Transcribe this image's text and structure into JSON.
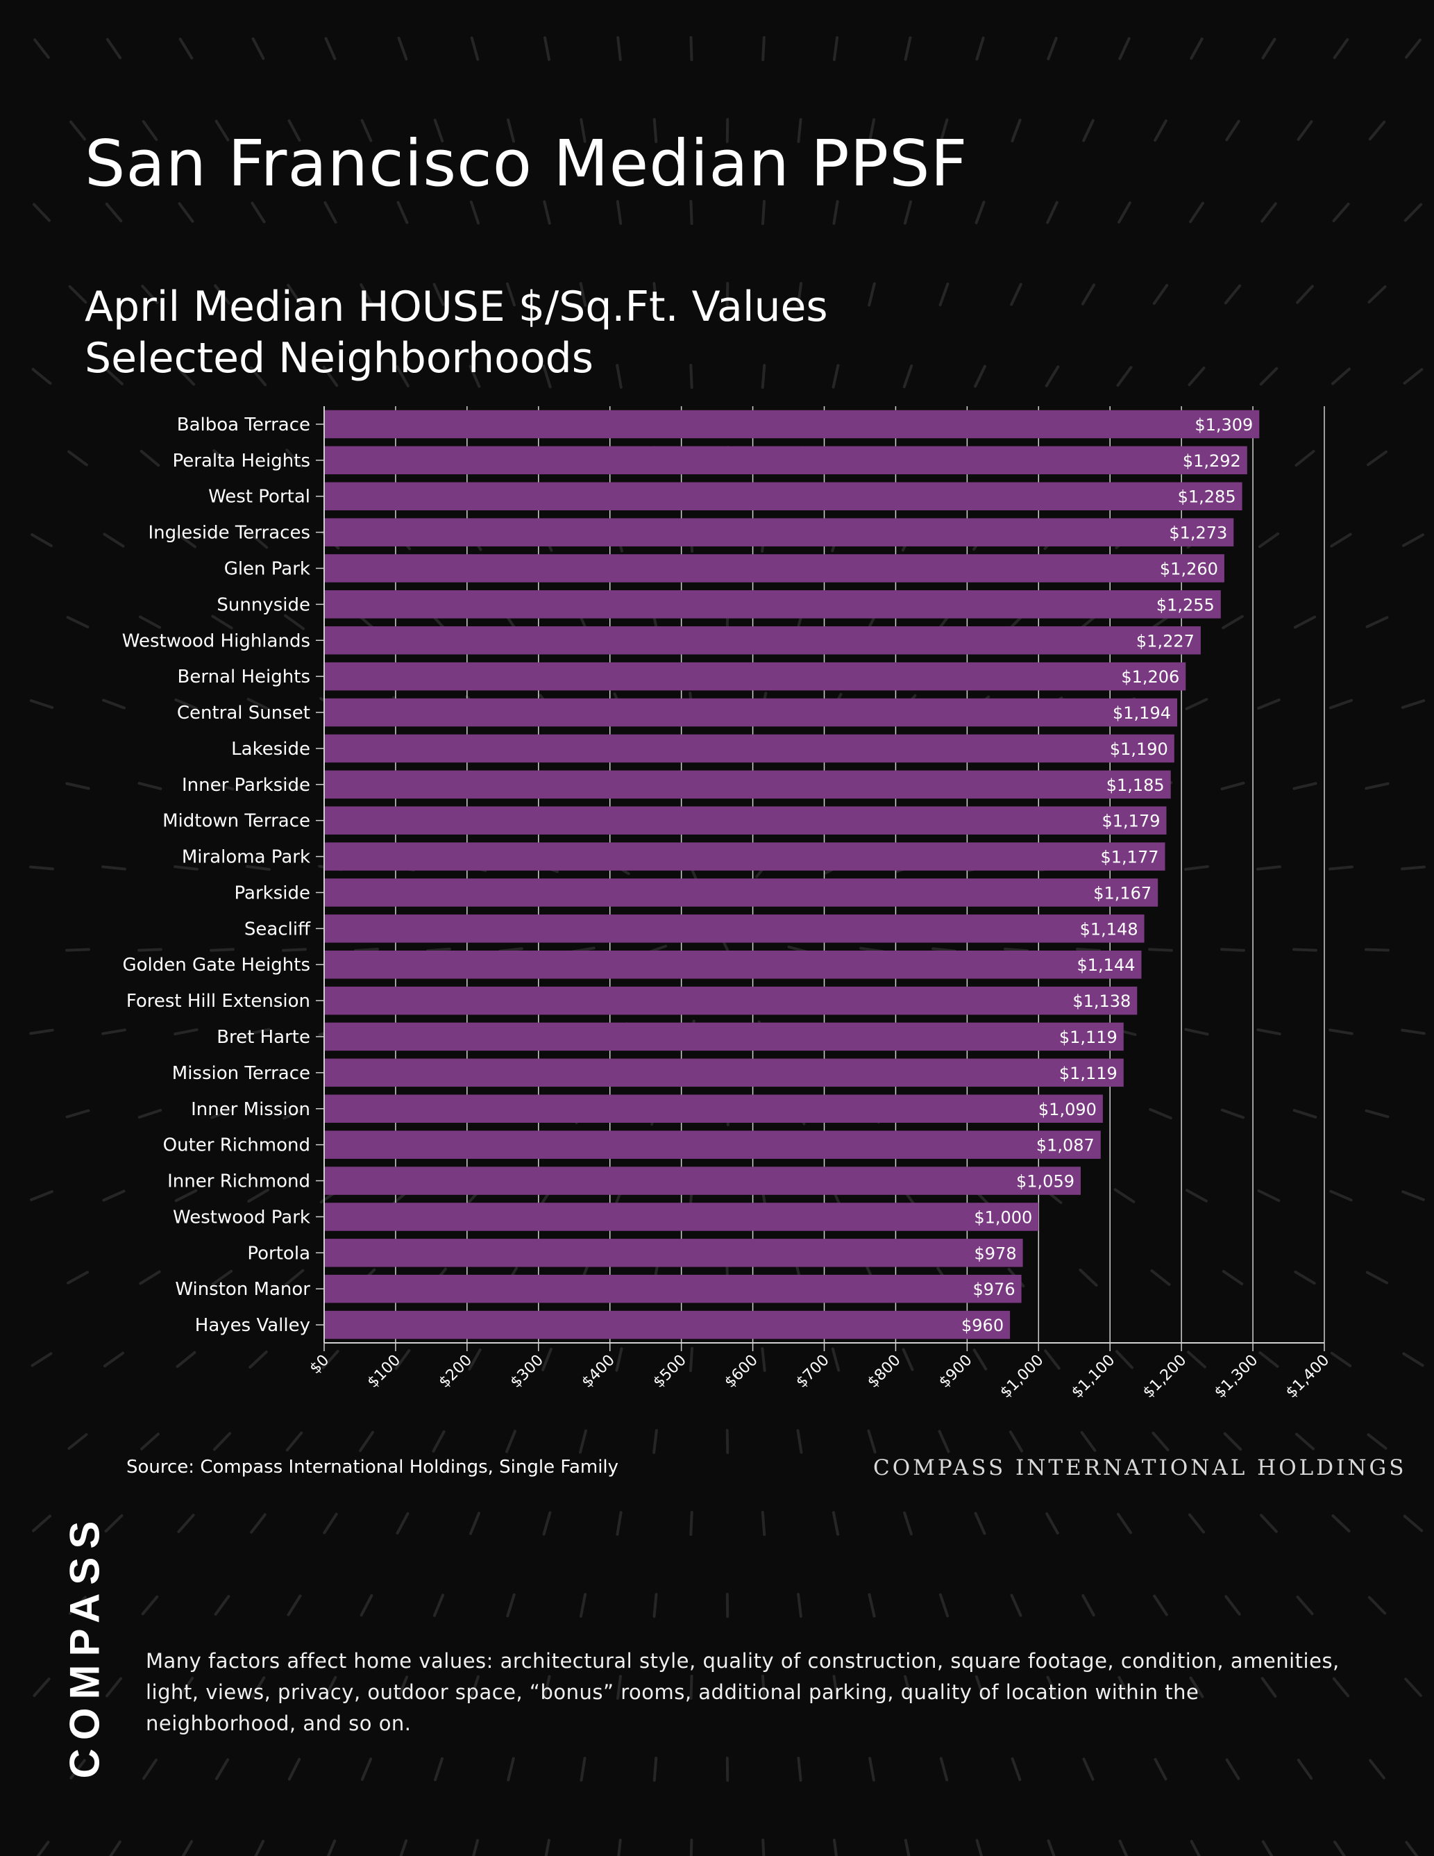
{
  "header": {
    "title": "San Francisco Median PPSF",
    "subtitle_line1": "April Median HOUSE $/Sq.Ft. Values",
    "subtitle_line2": "Selected Neighborhoods"
  },
  "footer": {
    "source": "Source: Compass International Holdings, Single Family",
    "wordmark": "COMPASS INTERNATIONAL HOLDINGS",
    "logo": "COMPASS",
    "disclaimer": "Many factors affect home values: architectural style, quality of construction, square footage, condition, amenities, light, views, privacy, outdoor space, “bonus” rooms, additional parking, quality of location within the neighborhood, and so on."
  },
  "colors": {
    "background": "#0b0b0b",
    "bar": "#7a3a82",
    "text": "#ffffff",
    "gridline": "#d0d0d0"
  },
  "chart_data": {
    "type": "bar",
    "orientation": "horizontal",
    "categories": [
      "Balboa Terrace",
      "Peralta Heights",
      "West Portal",
      "Ingleside Terraces",
      "Glen Park",
      "Sunnyside",
      "Westwood Highlands",
      "Bernal Heights",
      "Central Sunset",
      "Lakeside",
      "Inner Parkside",
      "Midtown Terrace",
      "Miraloma Park",
      "Parkside",
      "Seacliff",
      "Golden Gate Heights",
      "Forest Hill Extension",
      "Bret Harte",
      "Mission Terrace",
      "Inner Mission",
      "Outer Richmond",
      "Inner Richmond",
      "Westwood Park",
      "Portola",
      "Winston Manor",
      "Hayes Valley"
    ],
    "values": [
      1309,
      1292,
      1285,
      1273,
      1260,
      1255,
      1227,
      1206,
      1194,
      1190,
      1185,
      1179,
      1177,
      1167,
      1148,
      1144,
      1138,
      1119,
      1119,
      1090,
      1087,
      1059,
      1000,
      978,
      976,
      960
    ],
    "value_labels": [
      "$1,309",
      "$1,292",
      "$1,285",
      "$1,273",
      "$1,260",
      "$1,255",
      "$1,227",
      "$1,206",
      "$1,194",
      "$1,190",
      "$1,185",
      "$1,179",
      "$1,177",
      "$1,167",
      "$1,148",
      "$1,144",
      "$1,138",
      "$1,119",
      "$1,119",
      "$1,090",
      "$1,087",
      "$1,059",
      "$1,000",
      "$978",
      "$976",
      "$960"
    ],
    "xlim": [
      0,
      1400
    ],
    "xticks": [
      0,
      100,
      200,
      300,
      400,
      500,
      600,
      700,
      800,
      900,
      1000,
      1100,
      1200,
      1300,
      1400
    ],
    "xtick_labels": [
      "$0",
      "$100",
      "$200",
      "$300",
      "$400",
      "$500",
      "$600",
      "$700",
      "$800",
      "$900",
      "$1,000",
      "$1,100",
      "$1,200",
      "$1,300",
      "$1,400"
    ],
    "grid": true,
    "xlabel": "",
    "ylabel": ""
  }
}
